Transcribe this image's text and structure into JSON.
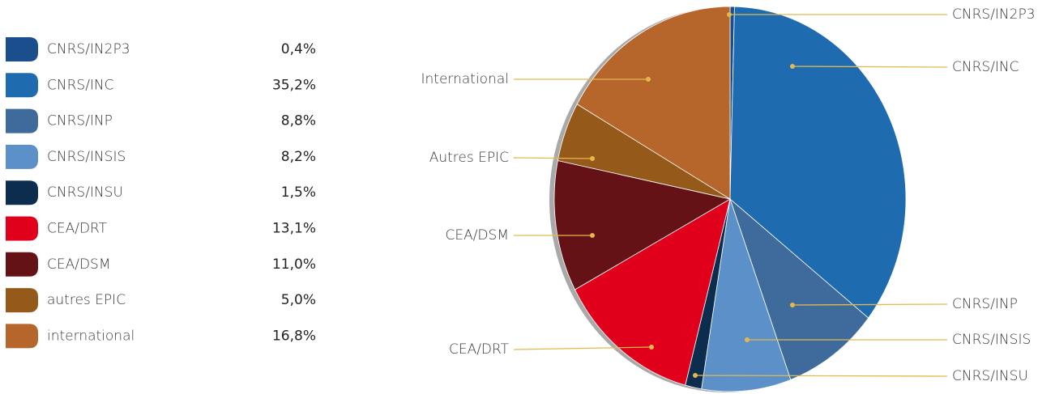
{
  "chart_data": {
    "type": "pie",
    "categories": [
      "CNRS/IN2P3",
      "CNRS/INC",
      "CNRS/INP",
      "CNRS/INSIS",
      "CNRS/INSU",
      "CEA/DRT",
      "CEA/DSM",
      "autres EPIC",
      "international"
    ],
    "values": [
      0.4,
      35.2,
      8.8,
      8.2,
      1.5,
      13.1,
      11.0,
      5.0,
      16.8
    ],
    "value_labels": [
      "0,4%",
      "35,2%",
      "8,8%",
      "8,2%",
      "1,5%",
      "13,1%",
      "11,0%",
      "5,0%",
      "16,8%"
    ],
    "callout_labels": [
      "CNRS/IN2P3",
      "CNRS/INC",
      "CNRS/INP",
      "CNRS/INSIS",
      "CNRS/INSU",
      "CEA/DRT",
      "CEA/DSM",
      "Autres EPIC",
      "International"
    ],
    "colors": [
      "#1b4e8c",
      "#1f6bb0",
      "#3e6b9b",
      "#5c90c9",
      "#0d2d4f",
      "#e1001b",
      "#651216",
      "#955a19",
      "#b6652b"
    ]
  }
}
